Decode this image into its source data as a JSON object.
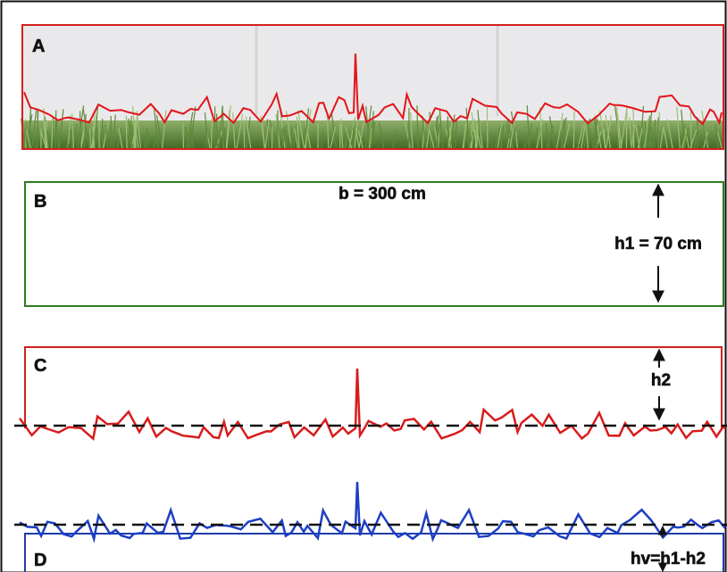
{
  "panel_a": {
    "label": "A"
  },
  "panel_b": {
    "label": "B",
    "width_label": "b = 300 cm",
    "height_label": "h1 = 70 cm"
  },
  "panel_c": {
    "label": "C",
    "height_label": "h2"
  },
  "panel_d": {
    "label": "D",
    "height_label": "hv=h1-h2"
  }
}
